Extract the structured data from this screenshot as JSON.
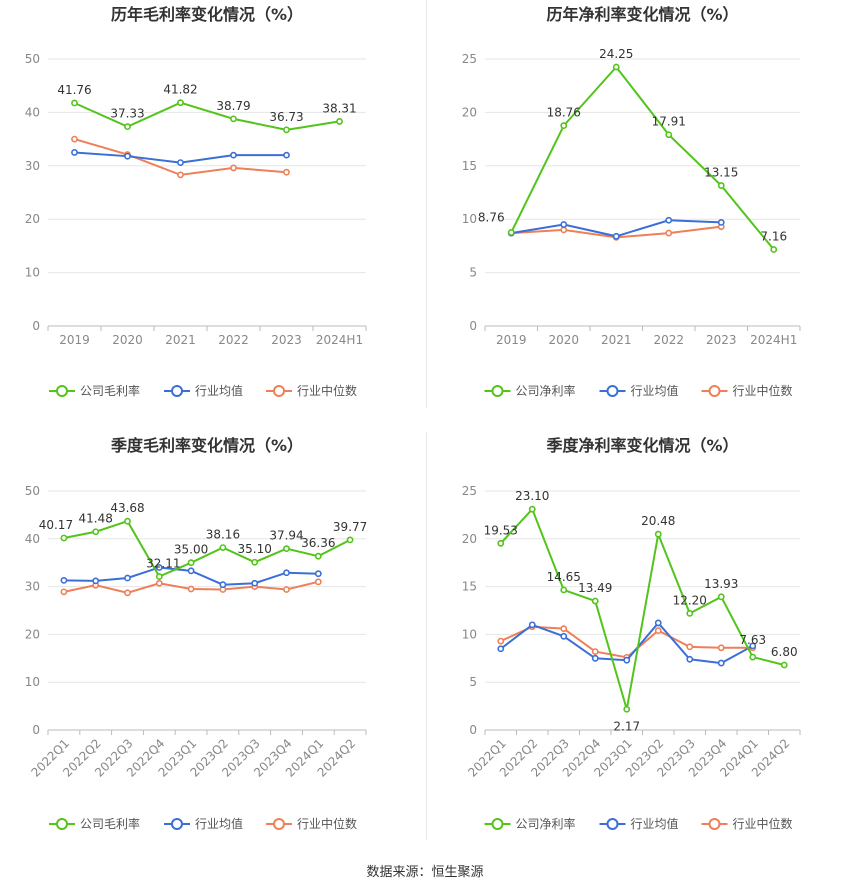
{
  "source_label": "数据来源：恒生聚源",
  "colors": {
    "company": "#52c41a",
    "avg": "#3a6fd8",
    "median": "#ee7f57",
    "grid": "#e6e6e6",
    "axis": "#999999"
  },
  "chart_data": [
    {
      "type": "line",
      "title": "历年毛利率变化情况（%）",
      "categories": [
        "2019",
        "2020",
        "2021",
        "2022",
        "2023",
        "2024H1"
      ],
      "ylim": [
        0,
        50
      ],
      "yticks": [
        0,
        10,
        20,
        30,
        40,
        50
      ],
      "series": [
        {
          "name": "公司毛利率",
          "values": [
            41.76,
            37.33,
            41.82,
            38.79,
            36.73,
            38.31
          ],
          "labels": [
            "41.76",
            "37.33",
            "41.82",
            "38.79",
            "36.73",
            "38.31"
          ]
        },
        {
          "name": "行业均值",
          "values": [
            32.5,
            31.8,
            30.6,
            32.0,
            32.0,
            null
          ]
        },
        {
          "name": "行业中位数",
          "values": [
            35.0,
            32.1,
            28.3,
            29.6,
            28.8,
            null
          ]
        }
      ],
      "legend": "bottom",
      "grid": true,
      "rotate_x": false
    },
    {
      "type": "line",
      "title": "历年净利率变化情况（%）",
      "categories": [
        "2019",
        "2020",
        "2021",
        "2022",
        "2023",
        "2024H1"
      ],
      "ylim": [
        0,
        25
      ],
      "yticks": [
        0,
        5,
        10,
        15,
        20,
        25
      ],
      "series": [
        {
          "name": "公司净利率",
          "values": [
            8.76,
            18.76,
            24.25,
            17.91,
            13.15,
            7.16
          ],
          "labels": [
            "8.76",
            "18.76",
            "24.25",
            "17.91",
            "13.15",
            "7.16"
          ]
        },
        {
          "name": "行业均值",
          "values": [
            8.7,
            9.5,
            8.4,
            9.9,
            9.7,
            null
          ]
        },
        {
          "name": "行业中位数",
          "values": [
            8.7,
            9.0,
            8.3,
            8.7,
            9.3,
            null
          ]
        }
      ],
      "legend": "bottom",
      "grid": true,
      "rotate_x": false
    },
    {
      "type": "line",
      "title": "季度毛利率变化情况（%）",
      "categories": [
        "2022Q1",
        "2022Q2",
        "2022Q3",
        "2022Q4",
        "2023Q1",
        "2023Q2",
        "2023Q3",
        "2023Q4",
        "2024Q1",
        "2024Q2"
      ],
      "ylim": [
        0,
        50
      ],
      "yticks": [
        0,
        10,
        20,
        30,
        40,
        50
      ],
      "series": [
        {
          "name": "公司毛利率",
          "values": [
            40.17,
            41.48,
            43.68,
            32.11,
            35.0,
            38.16,
            35.1,
            37.94,
            36.36,
            39.77
          ],
          "labels": [
            "40.17",
            "41.48",
            "43.68",
            "32.11",
            "35.00",
            "38.16",
            "35.10",
            "37.94",
            "36.36",
            "39.77"
          ]
        },
        {
          "name": "行业均值",
          "values": [
            31.3,
            31.2,
            31.8,
            34.0,
            33.3,
            30.4,
            30.7,
            32.9,
            32.7,
            null
          ]
        },
        {
          "name": "行业中位数",
          "values": [
            28.9,
            30.3,
            28.7,
            30.7,
            29.5,
            29.4,
            30.0,
            29.4,
            31.0,
            null
          ]
        }
      ],
      "legend": "bottom",
      "grid": true,
      "rotate_x": true
    },
    {
      "type": "line",
      "title": "季度净利率变化情况（%）",
      "categories": [
        "2022Q1",
        "2022Q2",
        "2022Q3",
        "2022Q4",
        "2023Q1",
        "2023Q2",
        "2023Q3",
        "2023Q4",
        "2024Q1",
        "2024Q2"
      ],
      "ylim": [
        0,
        25
      ],
      "yticks": [
        0,
        5,
        10,
        15,
        20,
        25
      ],
      "series": [
        {
          "name": "公司净利率",
          "values": [
            19.53,
            23.1,
            14.65,
            13.49,
            2.17,
            20.48,
            12.2,
            13.93,
            7.63,
            6.8
          ],
          "labels": [
            "19.53",
            "23.10",
            "14.65",
            "13.49",
            "2.17",
            "20.48",
            "12.20",
            "13.93",
            "7.63",
            "6.80"
          ]
        },
        {
          "name": "行业均值",
          "values": [
            8.5,
            11.0,
            9.8,
            7.5,
            7.3,
            11.2,
            7.4,
            7.0,
            8.8,
            null
          ]
        },
        {
          "name": "行业中位数",
          "values": [
            9.3,
            10.8,
            10.6,
            8.2,
            7.6,
            10.4,
            8.7,
            8.6,
            8.6,
            null
          ]
        }
      ],
      "legend": "bottom",
      "grid": true,
      "rotate_x": true
    }
  ]
}
